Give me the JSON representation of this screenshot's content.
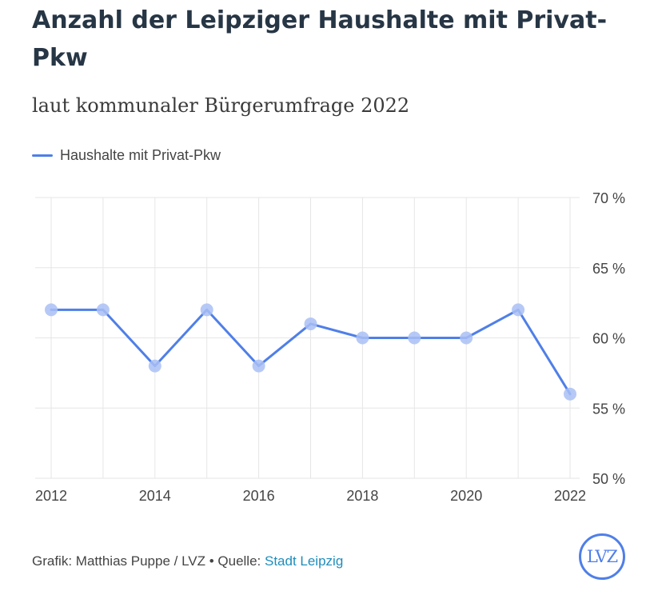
{
  "header": {
    "title": "Anzahl der Leipziger Haushalte mit Privat-Pkw",
    "subtitle": "laut kommunaler Bürgerumfrage 2022"
  },
  "legend": {
    "label": "Haushalte mit Privat-Pkw"
  },
  "colors": {
    "series": "#4f7fe8",
    "marker": "#a9c0f4",
    "grid": "#e6e6e6",
    "source_link": "#1e8dbb"
  },
  "chart_data": {
    "type": "line",
    "title": "Anzahl der Leipziger Haushalte mit Privat-Pkw",
    "subtitle": "laut kommunaler Bürgerumfrage 2022",
    "xlabel": "",
    "ylabel": "",
    "x": [
      2012,
      2013,
      2014,
      2015,
      2016,
      2017,
      2018,
      2019,
      2020,
      2021,
      2022
    ],
    "series": [
      {
        "name": "Haushalte mit Privat-Pkw",
        "values": [
          62,
          62,
          58,
          62,
          58,
          61,
          60,
          60,
          60,
          62,
          56
        ]
      }
    ],
    "xlim": [
      2012,
      2022
    ],
    "ylim": [
      50,
      70
    ],
    "x_ticks": [
      "2012",
      "2014",
      "2016",
      "2018",
      "2020",
      "2022"
    ],
    "y_ticks": [
      "50 %",
      "55 %",
      "60 %",
      "65 %",
      "70 %"
    ],
    "y_tick_values": [
      50,
      55,
      60,
      65,
      70
    ],
    "x_tick_values": [
      2012,
      2014,
      2016,
      2018,
      2020,
      2022
    ],
    "grid": true,
    "legend_position": "top-left"
  },
  "footer": {
    "credit": "Grafik: Matthias Puppe / LVZ • Quelle: ",
    "source_link": "Stadt Leipzig"
  },
  "logo": {
    "text": "LVZ"
  }
}
